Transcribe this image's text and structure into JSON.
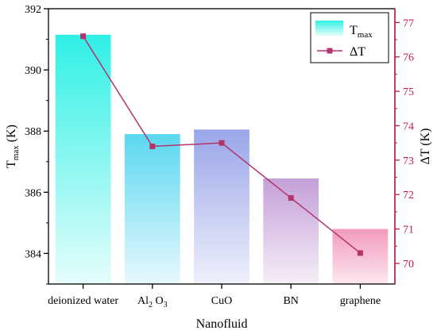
{
  "chart_data": {
    "type": "bar",
    "xlabel": "Nanofluid",
    "ylabel_left": {
      "main": "T",
      "sub": "max",
      "unit": " (K)"
    },
    "ylabel_right": "ΔT (K)",
    "categories": [
      {
        "main": "deionized water",
        "sub": "",
        "tail": ""
      },
      {
        "main": "Al",
        "sub": "2",
        "tail": " O",
        "sub2": "3"
      },
      {
        "main": "CuO",
        "sub": "",
        "tail": ""
      },
      {
        "main": "BN",
        "sub": "",
        "tail": ""
      },
      {
        "main": "graphene",
        "sub": "",
        "tail": ""
      }
    ],
    "left_axis": {
      "ylim": [
        383,
        392
      ],
      "ticks": [
        384,
        386,
        388,
        390,
        392
      ]
    },
    "right_axis": {
      "ylim": [
        69.4,
        77.4
      ],
      "ticks": [
        70,
        71,
        72,
        73,
        74,
        75,
        76,
        77
      ],
      "color": "#c2185b"
    },
    "series": [
      {
        "name": {
          "main": "T",
          "sub": "max"
        },
        "type": "bar",
        "axis": "left",
        "values": [
          391.15,
          387.9,
          388.05,
          386.45,
          384.8
        ],
        "colors_top": [
          "#2ff0e6",
          "#5ad8f0",
          "#9aa6e8",
          "#c4a0d8",
          "#f29abc"
        ],
        "colors_bottom": [
          "#e6fdfb",
          "#e8f8fd",
          "#eef0fb",
          "#f6eef8",
          "#fde8f1"
        ]
      },
      {
        "name": {
          "main": "ΔT",
          "sub": ""
        },
        "type": "line",
        "axis": "right",
        "values": [
          76.6,
          73.4,
          73.5,
          71.9,
          70.3
        ],
        "color": "#b5326d"
      }
    ],
    "legend": "top-right",
    "grid": false
  }
}
